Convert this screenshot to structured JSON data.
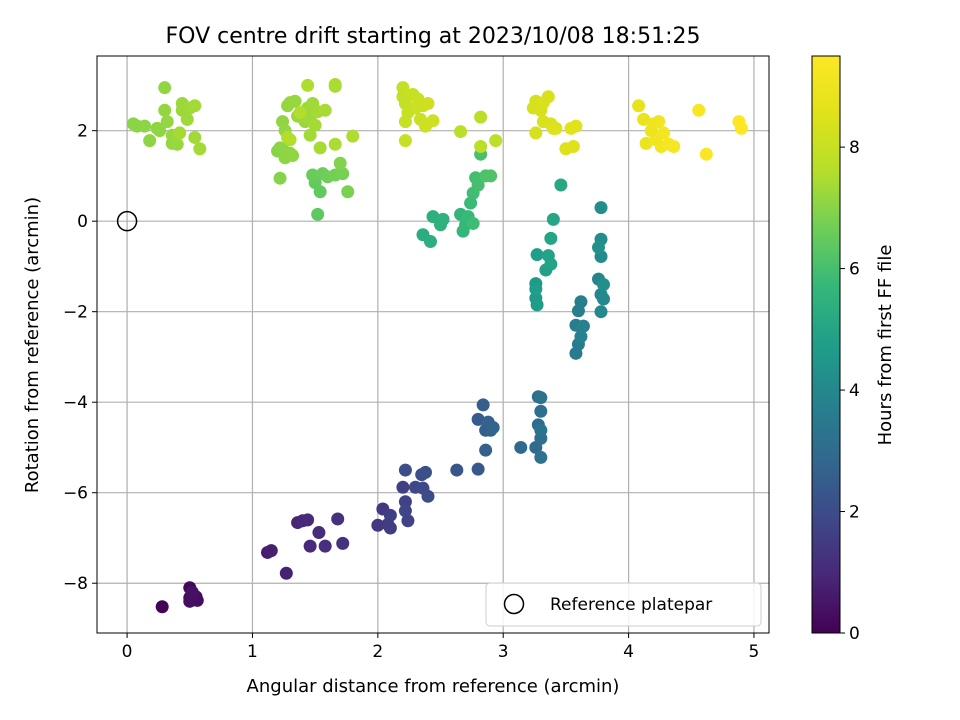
{
  "chart_data": {
    "type": "scatter",
    "title": "FOV centre drift starting at 2023/10/08 18:51:25",
    "xlabel": "Angular distance from reference (arcmin)",
    "ylabel": "Rotation from reference (arcmin)",
    "xlim": [
      -0.24,
      5.12
    ],
    "ylim": [
      -9.1,
      3.65
    ],
    "xticks": [
      0,
      1,
      2,
      3,
      4,
      5
    ],
    "yticks": [
      -8,
      -6,
      -4,
      -2,
      0,
      2
    ],
    "grid": true,
    "legend": {
      "placement": "bottom-right",
      "label": "Reference platepar"
    },
    "reference_point": {
      "x": 0,
      "y": 0
    },
    "colorbar": {
      "label": "Hours from first FF file",
      "colormap": "viridis",
      "range": [
        0,
        9.5
      ],
      "ticks": [
        0,
        2,
        4,
        6,
        8
      ]
    },
    "points": [
      {
        "x": 0.28,
        "y": -8.52,
        "t": 0.05
      },
      {
        "x": 0.5,
        "y": -8.1,
        "t": 0.15
      },
      {
        "x": 0.5,
        "y": -8.32,
        "t": 0.2
      },
      {
        "x": 0.55,
        "y": -8.3,
        "t": 0.25
      },
      {
        "x": 0.56,
        "y": -8.38,
        "t": 0.3
      },
      {
        "x": 0.5,
        "y": -8.4,
        "t": 0.35
      },
      {
        "x": 0.52,
        "y": -8.2,
        "t": 0.4
      },
      {
        "x": 1.12,
        "y": -7.32,
        "t": 0.7
      },
      {
        "x": 1.15,
        "y": -7.28,
        "t": 0.75
      },
      {
        "x": 1.27,
        "y": -7.78,
        "t": 0.8
      },
      {
        "x": 1.36,
        "y": -6.66,
        "t": 0.9
      },
      {
        "x": 1.4,
        "y": -6.62,
        "t": 0.95
      },
      {
        "x": 1.44,
        "y": -6.6,
        "t": 1.0
      },
      {
        "x": 1.46,
        "y": -7.18,
        "t": 1.05
      },
      {
        "x": 1.53,
        "y": -6.88,
        "t": 1.1
      },
      {
        "x": 1.58,
        "y": -7.18,
        "t": 1.15
      },
      {
        "x": 1.68,
        "y": -6.58,
        "t": 1.2
      },
      {
        "x": 1.72,
        "y": -7.12,
        "t": 1.25
      },
      {
        "x": 2.0,
        "y": -6.72,
        "t": 1.4
      },
      {
        "x": 2.04,
        "y": -6.36,
        "t": 1.45
      },
      {
        "x": 2.08,
        "y": -6.7,
        "t": 1.5
      },
      {
        "x": 2.1,
        "y": -6.78,
        "t": 1.55
      },
      {
        "x": 2.1,
        "y": -6.5,
        "t": 1.6
      },
      {
        "x": 2.2,
        "y": -5.88,
        "t": 1.65
      },
      {
        "x": 2.22,
        "y": -6.2,
        "t": 1.7
      },
      {
        "x": 2.24,
        "y": -6.62,
        "t": 1.75
      },
      {
        "x": 2.22,
        "y": -6.4,
        "t": 1.8
      },
      {
        "x": 2.3,
        "y": -5.88,
        "t": 1.85
      },
      {
        "x": 2.36,
        "y": -5.9,
        "t": 1.9
      },
      {
        "x": 2.4,
        "y": -6.08,
        "t": 1.95
      },
      {
        "x": 2.22,
        "y": -5.5,
        "t": 2.0
      },
      {
        "x": 2.35,
        "y": -5.6,
        "t": 2.05
      },
      {
        "x": 2.38,
        "y": -5.55,
        "t": 2.1
      },
      {
        "x": 2.63,
        "y": -5.5,
        "t": 2.3
      },
      {
        "x": 2.8,
        "y": -5.48,
        "t": 2.35
      },
      {
        "x": 2.8,
        "y": -4.38,
        "t": 2.45
      },
      {
        "x": 2.84,
        "y": -4.06,
        "t": 2.5
      },
      {
        "x": 2.86,
        "y": -4.62,
        "t": 2.55
      },
      {
        "x": 2.86,
        "y": -5.06,
        "t": 2.6
      },
      {
        "x": 2.88,
        "y": -4.44,
        "t": 2.65
      },
      {
        "x": 2.9,
        "y": -4.62,
        "t": 2.7
      },
      {
        "x": 2.92,
        "y": -4.56,
        "t": 2.75
      },
      {
        "x": 3.14,
        "y": -5.0,
        "t": 2.9
      },
      {
        "x": 3.26,
        "y": -5.0,
        "t": 2.95
      },
      {
        "x": 3.28,
        "y": -4.5,
        "t": 3.0
      },
      {
        "x": 3.28,
        "y": -3.88,
        "t": 3.05
      },
      {
        "x": 3.3,
        "y": -4.2,
        "t": 3.1
      },
      {
        "x": 3.3,
        "y": -4.8,
        "t": 3.15
      },
      {
        "x": 3.3,
        "y": -5.22,
        "t": 3.2
      },
      {
        "x": 3.3,
        "y": -3.9,
        "t": 3.25
      },
      {
        "x": 3.3,
        "y": -4.62,
        "t": 3.3
      },
      {
        "x": 3.58,
        "y": -2.92,
        "t": 3.5
      },
      {
        "x": 3.6,
        "y": -2.72,
        "t": 3.55
      },
      {
        "x": 3.58,
        "y": -2.3,
        "t": 3.6
      },
      {
        "x": 3.6,
        "y": -1.98,
        "t": 3.65
      },
      {
        "x": 3.62,
        "y": -1.78,
        "t": 3.7
      },
      {
        "x": 3.64,
        "y": -2.32,
        "t": 3.75
      },
      {
        "x": 3.62,
        "y": -2.55,
        "t": 3.8
      },
      {
        "x": 3.76,
        "y": -1.28,
        "t": 3.9
      },
      {
        "x": 3.78,
        "y": -1.62,
        "t": 3.95
      },
      {
        "x": 3.78,
        "y": -2.0,
        "t": 4.0
      },
      {
        "x": 3.8,
        "y": -1.72,
        "t": 4.05
      },
      {
        "x": 3.78,
        "y": -0.78,
        "t": 4.1
      },
      {
        "x": 3.78,
        "y": -0.4,
        "t": 4.15
      },
      {
        "x": 3.78,
        "y": 0.3,
        "t": 4.2
      },
      {
        "x": 3.8,
        "y": -1.4,
        "t": 4.25
      },
      {
        "x": 3.76,
        "y": -0.58,
        "t": 4.3
      },
      {
        "x": 3.26,
        "y": -1.38,
        "t": 4.6
      },
      {
        "x": 3.26,
        "y": -1.7,
        "t": 4.65
      },
      {
        "x": 3.27,
        "y": -1.85,
        "t": 4.7
      },
      {
        "x": 3.26,
        "y": -1.5,
        "t": 4.75
      },
      {
        "x": 3.27,
        "y": -0.74,
        "t": 4.8
      },
      {
        "x": 3.34,
        "y": -1.08,
        "t": 4.85
      },
      {
        "x": 3.36,
        "y": -0.76,
        "t": 4.9
      },
      {
        "x": 3.38,
        "y": -0.95,
        "t": 4.95
      },
      {
        "x": 3.38,
        "y": -0.38,
        "t": 5.0
      },
      {
        "x": 3.4,
        "y": 0.04,
        "t": 5.05
      },
      {
        "x": 3.46,
        "y": 0.8,
        "t": 5.1
      },
      {
        "x": 2.36,
        "y": -0.3,
        "t": 5.3
      },
      {
        "x": 2.42,
        "y": -0.45,
        "t": 5.35
      },
      {
        "x": 2.44,
        "y": 0.1,
        "t": 5.4
      },
      {
        "x": 2.5,
        "y": -0.08,
        "t": 5.45
      },
      {
        "x": 2.52,
        "y": 0.04,
        "t": 5.5
      },
      {
        "x": 2.66,
        "y": 0.15,
        "t": 5.6
      },
      {
        "x": 2.68,
        "y": -0.22,
        "t": 5.65
      },
      {
        "x": 2.7,
        "y": -0.08,
        "t": 5.7
      },
      {
        "x": 2.72,
        "y": 0.1,
        "t": 5.75
      },
      {
        "x": 2.74,
        "y": 0.4,
        "t": 5.8
      },
      {
        "x": 2.76,
        "y": -0.05,
        "t": 5.85
      },
      {
        "x": 2.76,
        "y": 0.62,
        "t": 5.9
      },
      {
        "x": 2.78,
        "y": 0.96,
        "t": 5.95
      },
      {
        "x": 2.8,
        "y": 0.8,
        "t": 6.0
      },
      {
        "x": 2.82,
        "y": 1.48,
        "t": 6.05
      },
      {
        "x": 2.86,
        "y": 1.0,
        "t": 6.1
      },
      {
        "x": 2.9,
        "y": 1.0,
        "t": 6.15
      },
      {
        "x": 1.52,
        "y": 0.15,
        "t": 6.4
      },
      {
        "x": 1.54,
        "y": 0.65,
        "t": 6.45
      },
      {
        "x": 1.5,
        "y": 0.85,
        "t": 6.5
      },
      {
        "x": 1.48,
        "y": 1.02,
        "t": 6.55
      },
      {
        "x": 1.56,
        "y": 1.05,
        "t": 6.6
      },
      {
        "x": 1.6,
        "y": 0.98,
        "t": 6.65
      },
      {
        "x": 1.66,
        "y": 1.02,
        "t": 6.7
      },
      {
        "x": 1.72,
        "y": 1.05,
        "t": 6.75
      },
      {
        "x": 1.76,
        "y": 0.65,
        "t": 6.8
      },
      {
        "x": 1.7,
        "y": 1.28,
        "t": 6.9
      },
      {
        "x": 1.22,
        "y": 0.95,
        "t": 6.95
      },
      {
        "x": 1.2,
        "y": 1.55,
        "t": 7.0
      },
      {
        "x": 1.22,
        "y": 1.62,
        "t": 7.02
      },
      {
        "x": 1.24,
        "y": 1.6,
        "t": 7.04
      },
      {
        "x": 1.26,
        "y": 1.4,
        "t": 7.06
      },
      {
        "x": 1.3,
        "y": 1.5,
        "t": 7.08
      },
      {
        "x": 1.32,
        "y": 1.45,
        "t": 7.1
      },
      {
        "x": 1.24,
        "y": 2.2,
        "t": 7.12
      },
      {
        "x": 1.26,
        "y": 2.0,
        "t": 7.14
      },
      {
        "x": 1.28,
        "y": 2.55,
        "t": 7.16
      },
      {
        "x": 1.3,
        "y": 2.62,
        "t": 7.18
      },
      {
        "x": 1.34,
        "y": 2.65,
        "t": 7.2
      },
      {
        "x": 1.36,
        "y": 2.32,
        "t": 7.22
      },
      {
        "x": 1.4,
        "y": 2.4,
        "t": 7.24
      },
      {
        "x": 1.42,
        "y": 2.2,
        "t": 7.26
      },
      {
        "x": 1.44,
        "y": 2.5,
        "t": 7.28
      },
      {
        "x": 1.46,
        "y": 2.3,
        "t": 7.3
      },
      {
        "x": 1.48,
        "y": 2.6,
        "t": 7.32
      },
      {
        "x": 1.46,
        "y": 1.9,
        "t": 7.34
      },
      {
        "x": 1.5,
        "y": 2.12,
        "t": 7.36
      },
      {
        "x": 1.52,
        "y": 2.42,
        "t": 7.38
      },
      {
        "x": 1.54,
        "y": 1.62,
        "t": 7.4
      },
      {
        "x": 1.58,
        "y": 2.45,
        "t": 7.42
      },
      {
        "x": 1.66,
        "y": 2.98,
        "t": 7.44
      },
      {
        "x": 1.66,
        "y": 3.02,
        "t": 7.46
      },
      {
        "x": 1.66,
        "y": 1.7,
        "t": 7.48
      },
      {
        "x": 1.8,
        "y": 1.88,
        "t": 7.5
      },
      {
        "x": 1.44,
        "y": 3.0,
        "t": 7.52
      },
      {
        "x": 1.38,
        "y": 2.4,
        "t": 7.54
      },
      {
        "x": 1.3,
        "y": 1.8,
        "t": 7.56
      },
      {
        "x": 1.28,
        "y": 1.85,
        "t": 7.58
      },
      {
        "x": 0.05,
        "y": 2.15,
        "t": 7.0
      },
      {
        "x": 0.08,
        "y": 2.1,
        "t": 7.02
      },
      {
        "x": 0.14,
        "y": 2.1,
        "t": 7.04
      },
      {
        "x": 0.18,
        "y": 1.78,
        "t": 7.06
      },
      {
        "x": 0.24,
        "y": 2.05,
        "t": 7.08
      },
      {
        "x": 0.26,
        "y": 2.0,
        "t": 7.1
      },
      {
        "x": 0.3,
        "y": 2.95,
        "t": 7.12
      },
      {
        "x": 0.3,
        "y": 2.45,
        "t": 7.14
      },
      {
        "x": 0.32,
        "y": 2.2,
        "t": 7.16
      },
      {
        "x": 0.36,
        "y": 1.72,
        "t": 7.18
      },
      {
        "x": 0.36,
        "y": 1.9,
        "t": 7.2
      },
      {
        "x": 0.4,
        "y": 1.7,
        "t": 7.22
      },
      {
        "x": 0.44,
        "y": 2.6,
        "t": 7.24
      },
      {
        "x": 0.44,
        "y": 2.45,
        "t": 7.26
      },
      {
        "x": 0.48,
        "y": 2.25,
        "t": 7.28
      },
      {
        "x": 0.5,
        "y": 2.5,
        "t": 7.3
      },
      {
        "x": 0.54,
        "y": 1.85,
        "t": 7.32
      },
      {
        "x": 0.54,
        "y": 2.55,
        "t": 7.34
      },
      {
        "x": 0.58,
        "y": 1.6,
        "t": 7.36
      },
      {
        "x": 0.42,
        "y": 1.95,
        "t": 7.38
      },
      {
        "x": 2.82,
        "y": 2.3,
        "t": 7.7
      },
      {
        "x": 2.82,
        "y": 1.65,
        "t": 7.72
      },
      {
        "x": 2.66,
        "y": 1.98,
        "t": 7.74
      },
      {
        "x": 2.94,
        "y": 1.78,
        "t": 7.76
      },
      {
        "x": 2.2,
        "y": 2.95,
        "t": 7.9
      },
      {
        "x": 2.2,
        "y": 2.75,
        "t": 7.92
      },
      {
        "x": 2.22,
        "y": 2.6,
        "t": 7.94
      },
      {
        "x": 2.22,
        "y": 2.2,
        "t": 7.96
      },
      {
        "x": 2.22,
        "y": 1.78,
        "t": 7.98
      },
      {
        "x": 2.24,
        "y": 2.4,
        "t": 8.0
      },
      {
        "x": 2.28,
        "y": 2.8,
        "t": 8.02
      },
      {
        "x": 2.3,
        "y": 2.5,
        "t": 8.04
      },
      {
        "x": 2.32,
        "y": 2.7,
        "t": 8.06
      },
      {
        "x": 2.34,
        "y": 2.25,
        "t": 8.08
      },
      {
        "x": 2.36,
        "y": 2.55,
        "t": 8.1
      },
      {
        "x": 2.38,
        "y": 2.1,
        "t": 8.12
      },
      {
        "x": 2.44,
        "y": 2.22,
        "t": 8.14
      },
      {
        "x": 2.4,
        "y": 2.6,
        "t": 8.16
      },
      {
        "x": 3.24,
        "y": 2.5,
        "t": 8.3
      },
      {
        "x": 3.26,
        "y": 2.65,
        "t": 8.32
      },
      {
        "x": 3.26,
        "y": 1.95,
        "t": 8.34
      },
      {
        "x": 3.3,
        "y": 2.45,
        "t": 8.36
      },
      {
        "x": 3.32,
        "y": 2.2,
        "t": 8.38
      },
      {
        "x": 3.32,
        "y": 2.62,
        "t": 8.4
      },
      {
        "x": 3.36,
        "y": 2.75,
        "t": 8.42
      },
      {
        "x": 3.38,
        "y": 2.15,
        "t": 8.44
      },
      {
        "x": 3.4,
        "y": 2.05,
        "t": 8.46
      },
      {
        "x": 3.42,
        "y": 2.05,
        "t": 8.48
      },
      {
        "x": 3.5,
        "y": 1.6,
        "t": 8.5
      },
      {
        "x": 3.56,
        "y": 1.65,
        "t": 8.52
      },
      {
        "x": 3.54,
        "y": 2.05,
        "t": 8.54
      },
      {
        "x": 3.58,
        "y": 2.1,
        "t": 8.56
      },
      {
        "x": 4.08,
        "y": 2.55,
        "t": 8.8
      },
      {
        "x": 4.12,
        "y": 2.25,
        "t": 8.85
      },
      {
        "x": 4.14,
        "y": 1.72,
        "t": 8.9
      },
      {
        "x": 4.18,
        "y": 2.0,
        "t": 8.95
      },
      {
        "x": 4.2,
        "y": 2.15,
        "t": 9.0
      },
      {
        "x": 4.22,
        "y": 1.8,
        "t": 9.05
      },
      {
        "x": 4.24,
        "y": 2.2,
        "t": 9.1
      },
      {
        "x": 4.26,
        "y": 1.65,
        "t": 9.15
      },
      {
        "x": 4.28,
        "y": 1.95,
        "t": 9.2
      },
      {
        "x": 4.32,
        "y": 1.7,
        "t": 9.25
      },
      {
        "x": 4.36,
        "y": 1.65,
        "t": 9.3
      },
      {
        "x": 4.56,
        "y": 2.45,
        "t": 9.35
      },
      {
        "x": 4.62,
        "y": 1.48,
        "t": 9.4
      },
      {
        "x": 4.88,
        "y": 2.2,
        "t": 9.45
      },
      {
        "x": 4.9,
        "y": 2.05,
        "t": 9.5
      }
    ]
  }
}
